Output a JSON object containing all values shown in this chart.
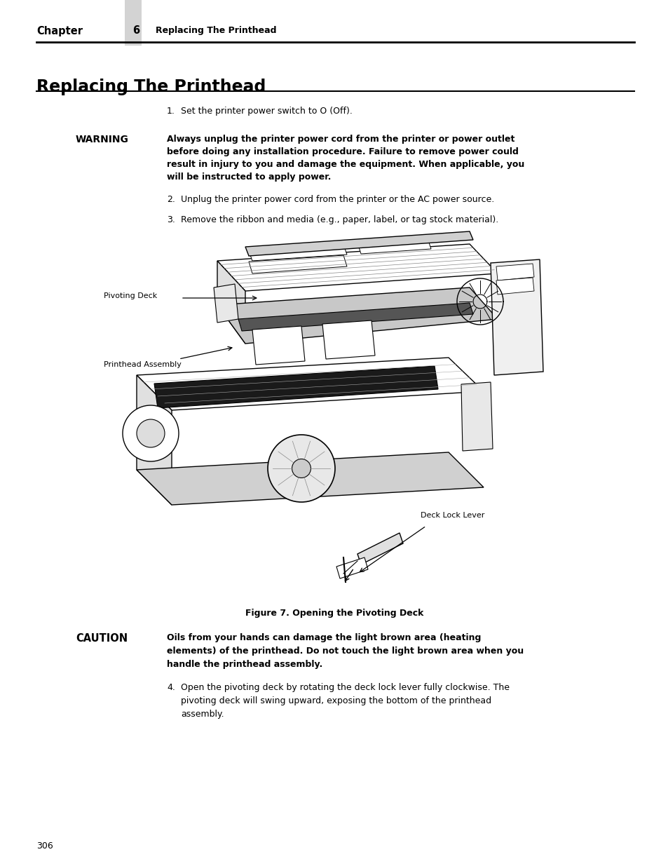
{
  "bg_color": "#ffffff",
  "chapter_label": "Chapter",
  "chapter_num": "6",
  "chapter_title": "Replacing The Printhead",
  "page_title": "Replacing The Printhead",
  "header_bar_color": "#d3d3d3",
  "step1": "Set the printer power switch to O (Off).",
  "warning_label": "WARNING",
  "warning_line1": "Always unplug the printer power cord from the printer or power outlet",
  "warning_line2": "before doing any installation procedure. Failure to remove power could",
  "warning_line3": "result in injury to you and damage the equipment. When applicable, you",
  "warning_line4": "will be instructed to apply power.",
  "step2": "Unplug the printer power cord from the printer or the AC power source.",
  "step3": "Remove the ribbon and media (e.g., paper, label, or tag stock material).",
  "fig_caption": "Figure 7. Opening the Pivoting Deck",
  "caution_label": "CAUTION",
  "caution_line1": "Oils from your hands can damage the light brown area (heating",
  "caution_line2": "elements) of the printhead. Do not touch the light brown area when you",
  "caution_line3": "handle the printhead assembly.",
  "step4_line1": "Open the pivoting deck by rotating the deck lock lever fully clockwise. The",
  "step4_line2": "pivoting deck will swing upward, exposing the bottom of the printhead",
  "step4_line3": "assembly.",
  "page_number": "306",
  "label_pivoting_deck": "Pivoting Deck",
  "label_printhead_assembly": "Printhead Assembly",
  "label_deck_lock_lever": "Deck Lock Lever"
}
